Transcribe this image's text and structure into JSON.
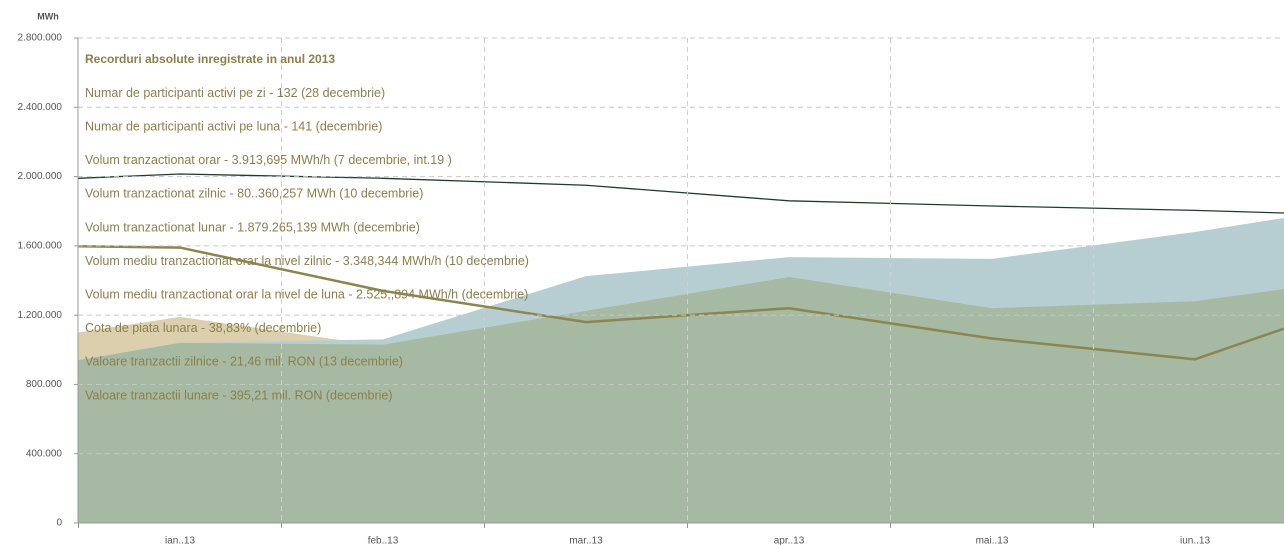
{
  "chart_data": {
    "type": "area",
    "y_unit": "MWh",
    "categories": [
      null,
      "ian..13",
      "feb..13",
      "mar..13",
      "apr..13",
      "mai..13",
      "iun..13",
      null
    ],
    "series": [
      {
        "type": "area",
        "color": "#dbcfae",
        "values": [
          1010000,
          1190000,
          1020000,
          1150000,
          1300000,
          1150000,
          1200000,
          1300000
        ]
      },
      {
        "type": "area",
        "color": "#b6ced1",
        "values": [
          840000,
          1040000,
          1060000,
          1425000,
          1535000,
          1525000,
          1680000,
          1865000
        ]
      },
      {
        "type": "area",
        "color": "#a6b9a2",
        "values": [
          840000,
          1040000,
          1030000,
          1225000,
          1420000,
          1240000,
          1280000,
          1441000
        ]
      },
      {
        "type": "line",
        "color": "#8b8550",
        "values": [
          1605000,
          1590000,
          1340000,
          1160000,
          1240000,
          1065000,
          945000,
          1349000
        ]
      },
      {
        "type": "line",
        "color": "#1f3d2e",
        "values": [
          1965000,
          2015000,
          1990000,
          1950000,
          1860000,
          1830000,
          1805000,
          1770000
        ]
      }
    ],
    "ylim": [
      0,
      2800000
    ],
    "yticks": [
      0,
      {
        "value": 400000,
        "label": "400.000"
      },
      {
        "value": 800000,
        "label": "800.000"
      },
      {
        "value": 1200000,
        "label": "1.200.000"
      },
      {
        "value": 1600000,
        "label": "1.600.000"
      },
      {
        "value": 2000000,
        "label": "2.000.000"
      },
      {
        "value": 2400000,
        "label": "2.400.000"
      },
      {
        "value": 2800000,
        "label": "2.800.000"
      }
    ],
    "grid": true,
    "annotations": [
      "Recorduri absolute inregistrate in anul 2013",
      "Numar de participanti activi  pe zi - 132 (28 decembrie)",
      "Numar de participanti activi pe luna - 141 (decembrie)",
      "Volum tranzactionat orar - 3.913,695 MWh/h  (7 decembrie, int.19 )",
      "Volum tranzactionat zilnic - 80..360,257 MWh (10 decembrie)",
      "Volum tranzactionat lunar - 1.879.265,139 MWh (decembrie)",
      "Volum mediu tranzactionat orar la nivel zilnic - 3.348,344 MWh/h (10 decembrie)",
      "Volum mediu tranzactionat orar la nivel de luna - 2.525,,894 MWh/h (decembrie)",
      "Cota de piata lunara - 38,83% (decembrie)",
      "Valoare tranzactii zilnice - 21,46 mil. RON (13 decembrie)",
      "Valoare tranzactii lunare - 395,21 mil. RON (decembrie)"
    ]
  }
}
